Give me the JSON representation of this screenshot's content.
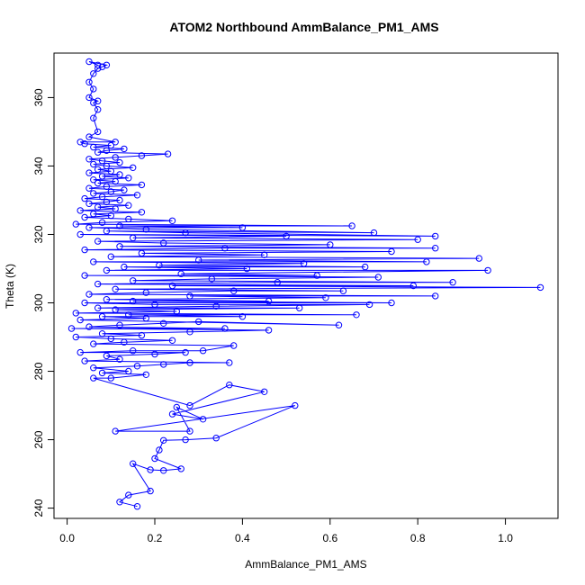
{
  "chart_data": {
    "type": "scatter",
    "title": "ATOM2 Northbound AmmBalance_PM1_AMS",
    "xlabel": "AmmBalance_PM1_AMS",
    "ylabel": "Theta (K)",
    "xlim": [
      -0.03,
      1.12
    ],
    "ylim": [
      237,
      373
    ],
    "xticks": [
      0.0,
      0.2,
      0.4,
      0.6,
      0.8,
      1.0
    ],
    "xtick_labels": [
      "0.0",
      "0.2",
      "0.4",
      "0.6",
      "0.8",
      "1.0"
    ],
    "yticks": [
      240,
      260,
      280,
      300,
      320,
      340,
      360
    ],
    "ytick_labels": [
      "240",
      "260",
      "280",
      "300",
      "320",
      "340",
      "360"
    ],
    "grid": false,
    "markers": "open-circle",
    "connected": true,
    "color": "#0000ff",
    "series": [
      {
        "points": [
          [
            0.16,
            240.5
          ],
          [
            0.12,
            241.8
          ],
          [
            0.14,
            243.8
          ],
          [
            0.19,
            245.0
          ],
          [
            0.15,
            253.0
          ],
          [
            0.19,
            251.2
          ],
          [
            0.22,
            251.0
          ],
          [
            0.26,
            251.5
          ],
          [
            0.2,
            254.5
          ],
          [
            0.21,
            257.0
          ],
          [
            0.22,
            259.8
          ],
          [
            0.27,
            260.0
          ],
          [
            0.34,
            260.5
          ],
          [
            0.52,
            270.0
          ],
          [
            0.11,
            262.5
          ],
          [
            0.28,
            262.5
          ],
          [
            0.25,
            269.5
          ],
          [
            0.31,
            266.0
          ],
          [
            0.24,
            267.5
          ],
          [
            0.45,
            274.0
          ],
          [
            0.37,
            276.0
          ],
          [
            0.28,
            270.0
          ],
          [
            0.06,
            278.0
          ],
          [
            0.1,
            278.0
          ],
          [
            0.18,
            279.0
          ],
          [
            0.08,
            279.5
          ],
          [
            0.14,
            280.0
          ],
          [
            0.06,
            281.0
          ],
          [
            0.16,
            281.5
          ],
          [
            0.22,
            282.0
          ],
          [
            0.28,
            282.5
          ],
          [
            0.37,
            282.5
          ],
          [
            0.04,
            283.0
          ],
          [
            0.12,
            283.5
          ],
          [
            0.09,
            284.5
          ],
          [
            0.2,
            285.0
          ],
          [
            0.27,
            285.5
          ],
          [
            0.03,
            285.5
          ],
          [
            0.15,
            286.0
          ],
          [
            0.31,
            286.0
          ],
          [
            0.38,
            287.5
          ],
          [
            0.06,
            288.0
          ],
          [
            0.13,
            288.5
          ],
          [
            0.24,
            289.0
          ],
          [
            0.1,
            289.5
          ],
          [
            0.02,
            290.0
          ],
          [
            0.17,
            290.5
          ],
          [
            0.08,
            291.0
          ],
          [
            0.28,
            291.5
          ],
          [
            0.46,
            292.0
          ],
          [
            0.01,
            292.5
          ],
          [
            0.36,
            292.5
          ],
          [
            0.05,
            293.0
          ],
          [
            0.12,
            293.5
          ],
          [
            0.22,
            294.0
          ],
          [
            0.3,
            294.5
          ],
          [
            0.62,
            293.5
          ],
          [
            0.03,
            295.0
          ],
          [
            0.18,
            295.5
          ],
          [
            0.08,
            296.0
          ],
          [
            0.4,
            296.0
          ],
          [
            0.14,
            296.5
          ],
          [
            0.66,
            296.5
          ],
          [
            0.02,
            297.0
          ],
          [
            0.25,
            297.5
          ],
          [
            0.11,
            298.0
          ],
          [
            0.53,
            298.5
          ],
          [
            0.07,
            298.5
          ],
          [
            0.34,
            299.0
          ],
          [
            0.69,
            299.5
          ],
          [
            0.2,
            299.5
          ],
          [
            0.04,
            300.0
          ],
          [
            0.74,
            300.0
          ],
          [
            0.15,
            300.5
          ],
          [
            0.46,
            300.5
          ],
          [
            0.09,
            301.0
          ],
          [
            0.59,
            301.5
          ],
          [
            0.28,
            302.0
          ],
          [
            0.84,
            302.0
          ],
          [
            0.05,
            302.5
          ],
          [
            0.18,
            303.0
          ],
          [
            0.38,
            303.5
          ],
          [
            0.63,
            303.5
          ],
          [
            0.11,
            304.0
          ],
          [
            1.08,
            304.5
          ],
          [
            0.24,
            305.0
          ],
          [
            0.79,
            305.0
          ],
          [
            0.07,
            305.5
          ],
          [
            0.48,
            306.0
          ],
          [
            0.88,
            306.0
          ],
          [
            0.15,
            306.5
          ],
          [
            0.33,
            307.0
          ],
          [
            0.71,
            307.5
          ],
          [
            0.04,
            308.0
          ],
          [
            0.57,
            308.0
          ],
          [
            0.26,
            308.5
          ],
          [
            0.96,
            309.5
          ],
          [
            0.09,
            309.5
          ],
          [
            0.41,
            310.0
          ],
          [
            0.13,
            310.5
          ],
          [
            0.68,
            310.5
          ],
          [
            0.21,
            311.0
          ],
          [
            0.54,
            311.5
          ],
          [
            0.06,
            312.0
          ],
          [
            0.82,
            312.0
          ],
          [
            0.3,
            312.5
          ],
          [
            0.94,
            313.0
          ],
          [
            0.1,
            313.5
          ],
          [
            0.45,
            314.0
          ],
          [
            0.17,
            314.5
          ],
          [
            0.74,
            315.0
          ],
          [
            0.04,
            315.5
          ],
          [
            0.36,
            316.0
          ],
          [
            0.84,
            316.0
          ],
          [
            0.12,
            316.5
          ],
          [
            0.6,
            317.0
          ],
          [
            0.22,
            317.5
          ],
          [
            0.07,
            318.0
          ],
          [
            0.8,
            318.5
          ],
          [
            0.15,
            319.0
          ],
          [
            0.5,
            319.5
          ],
          [
            0.03,
            320.0
          ],
          [
            0.84,
            319.5
          ],
          [
            0.27,
            320.5
          ],
          [
            0.09,
            321.0
          ],
          [
            0.7,
            320.5
          ],
          [
            0.18,
            321.5
          ],
          [
            0.05,
            322.0
          ],
          [
            0.4,
            322.0
          ],
          [
            0.12,
            322.5
          ],
          [
            0.65,
            322.5
          ],
          [
            0.02,
            323.0
          ],
          [
            0.08,
            323.5
          ],
          [
            0.24,
            324.0
          ],
          [
            0.14,
            324.5
          ],
          [
            0.04,
            325.0
          ],
          [
            0.1,
            325.5
          ],
          [
            0.06,
            326.0
          ],
          [
            0.17,
            326.5
          ],
          [
            0.03,
            327.0
          ],
          [
            0.11,
            327.5
          ],
          [
            0.07,
            328.0
          ],
          [
            0.14,
            328.5
          ],
          [
            0.05,
            329.0
          ],
          [
            0.09,
            329.5
          ],
          [
            0.12,
            330.0
          ],
          [
            0.04,
            330.5
          ],
          [
            0.08,
            331.0
          ],
          [
            0.16,
            331.5
          ],
          [
            0.06,
            332.0
          ],
          [
            0.1,
            332.5
          ],
          [
            0.13,
            333.0
          ],
          [
            0.05,
            333.5
          ],
          [
            0.09,
            334.0
          ],
          [
            0.17,
            334.5
          ],
          [
            0.07,
            335.0
          ],
          [
            0.11,
            335.5
          ],
          [
            0.06,
            336.0
          ],
          [
            0.14,
            336.5
          ],
          [
            0.08,
            337.0
          ],
          [
            0.12,
            337.5
          ],
          [
            0.05,
            338.0
          ],
          [
            0.1,
            338.5
          ],
          [
            0.07,
            339.0
          ],
          [
            0.15,
            339.5
          ],
          [
            0.09,
            340.0
          ],
          [
            0.06,
            340.5
          ],
          [
            0.12,
            341.0
          ],
          [
            0.08,
            341.5
          ],
          [
            0.05,
            342.0
          ],
          [
            0.11,
            342.5
          ],
          [
            0.17,
            343.0
          ],
          [
            0.23,
            343.5
          ],
          [
            0.07,
            344.0
          ],
          [
            0.09,
            344.5
          ],
          [
            0.13,
            345.0
          ],
          [
            0.06,
            345.5
          ],
          [
            0.1,
            346.0
          ],
          [
            0.04,
            346.5
          ],
          [
            0.03,
            347.0
          ],
          [
            0.11,
            347.0
          ],
          [
            0.05,
            348.5
          ],
          [
            0.07,
            350.0
          ],
          [
            0.06,
            354.0
          ],
          [
            0.07,
            356.5
          ],
          [
            0.06,
            358.5
          ],
          [
            0.07,
            359.0
          ],
          [
            0.05,
            360.0
          ],
          [
            0.06,
            362.5
          ],
          [
            0.05,
            364.5
          ],
          [
            0.06,
            367.0
          ],
          [
            0.07,
            368.5
          ],
          [
            0.08,
            369.0
          ],
          [
            0.09,
            369.5
          ],
          [
            0.05,
            370.5
          ],
          [
            0.07,
            369.5
          ]
        ]
      }
    ]
  }
}
